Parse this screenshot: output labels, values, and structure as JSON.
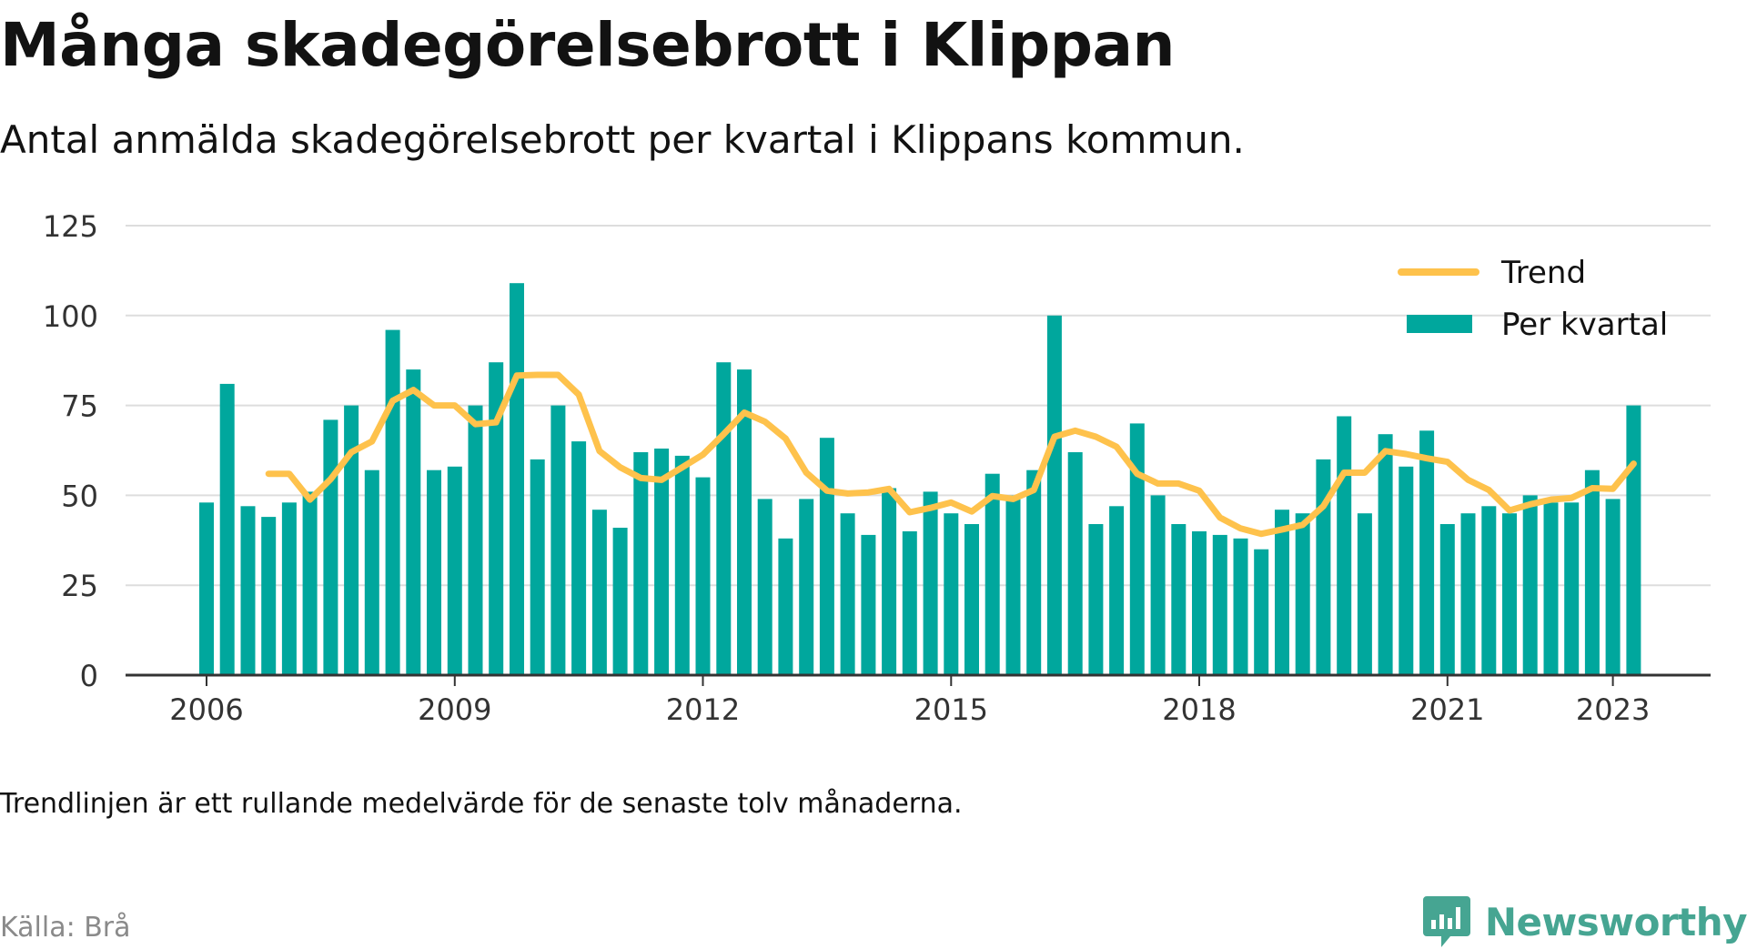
{
  "title": "Många skadegörelsebrott i Klippan",
  "subtitle": "Antal anmälda skadegörelsebrott per kvartal i Klippans kommun.",
  "note": "Trendlinjen är ett rullande medelvärde för de senaste tolv månaderna.",
  "source": "Källa: Brå",
  "brand": {
    "name": "Newsworthy",
    "icon": "newsworthy-chart-bubble-icon",
    "color": "#46a592"
  },
  "colors": {
    "bar": "#00a79d",
    "trend": "#fec24c",
    "grid": "#dddddd",
    "axis": "#333333"
  },
  "chart_data": {
    "type": "bar",
    "title": "Många skadegörelsebrott i Klippan",
    "ylim": [
      0,
      125
    ],
    "yticks": [
      "0",
      "25",
      "50",
      "75",
      "100",
      "125"
    ],
    "xticks": [
      "2006",
      "2009",
      "2012",
      "2015",
      "2018",
      "2021",
      "2023"
    ],
    "grid": true,
    "legend_position": "top-right",
    "x": [
      "2006K1",
      "2006K2",
      "2006K3",
      "2006K4",
      "2007K1",
      "2007K2",
      "2007K3",
      "2007K4",
      "2008K1",
      "2008K2",
      "2008K3",
      "2008K4",
      "2009K1",
      "2009K2",
      "2009K3",
      "2009K4",
      "2010K1",
      "2010K2",
      "2010K3",
      "2010K4",
      "2011K1",
      "2011K2",
      "2011K3",
      "2011K4",
      "2012K1",
      "2012K2",
      "2012K3",
      "2012K4",
      "2013K1",
      "2013K2",
      "2013K3",
      "2013K4",
      "2014K1",
      "2014K2",
      "2014K3",
      "2014K4",
      "2015K1",
      "2015K2",
      "2015K3",
      "2015K4",
      "2016K1",
      "2016K2",
      "2016K3",
      "2016K4",
      "2017K1",
      "2017K2",
      "2017K3",
      "2017K4",
      "2018K1",
      "2018K2",
      "2018K3",
      "2018K4",
      "2019K1",
      "2019K2",
      "2019K3",
      "2019K4",
      "2020K1",
      "2020K2",
      "2020K3",
      "2020K4",
      "2021K1",
      "2021K2",
      "2021K3",
      "2021K4",
      "2022K1",
      "2022K2",
      "2022K3",
      "2022K4",
      "2023K1",
      "2023K2"
    ],
    "series": [
      {
        "name": "Per kvartal",
        "kind": "bar",
        "values": [
          48,
          81,
          47,
          44,
          48,
          51,
          71,
          75,
          57,
          96,
          85,
          57,
          58,
          75,
          87,
          109,
          60,
          75,
          65,
          46,
          41,
          62,
          63,
          61,
          55,
          87,
          85,
          49,
          38,
          49,
          66,
          45,
          39,
          52,
          40,
          51,
          45,
          42,
          56,
          50,
          57,
          100,
          62,
          42,
          47,
          70,
          50,
          42,
          40,
          39,
          38,
          35,
          46,
          45,
          60,
          72,
          45,
          67,
          58,
          68,
          42,
          45,
          47,
          45,
          50,
          48,
          48,
          57,
          49,
          75
        ]
      },
      {
        "name": "Trend",
        "kind": "line",
        "values": [
          null,
          null,
          null,
          56.0,
          56.0,
          48.8,
          54.5,
          62.0,
          65.0,
          76.3,
          79.3,
          75.0,
          75.0,
          69.8,
          70.3,
          83.3,
          83.5,
          83.5,
          78.0,
          62.3,
          57.8,
          54.8,
          54.3,
          57.8,
          61.3,
          67.0,
          73.0,
          70.5,
          65.8,
          56.3,
          51.3,
          50.5,
          50.8,
          51.8,
          45.3,
          46.5,
          48.0,
          45.5,
          49.8,
          49.0,
          51.5,
          66.3,
          68.0,
          66.3,
          63.5,
          56.0,
          53.3,
          53.3,
          51.3,
          43.8,
          40.8,
          39.3,
          40.5,
          41.8,
          47.0,
          56.3,
          56.3,
          62.3,
          61.5,
          60.3,
          59.3,
          54.3,
          51.5,
          45.8,
          47.5,
          48.8,
          49.3,
          52.0,
          51.8,
          58.8
        ]
      }
    ]
  }
}
